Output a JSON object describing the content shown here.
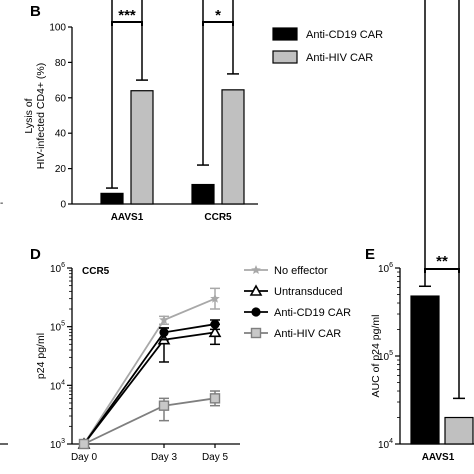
{
  "colors": {
    "cd19": "#000000",
    "hiv": "#c0c0c0",
    "no_effector": "#a8a8a8",
    "anti_hiv_line": "#7f7f7f"
  },
  "chart_data": [
    {
      "panel": "B",
      "type": "bar",
      "categories": [
        "AAVS1",
        "CCR5"
      ],
      "series": [
        {
          "name": "Anti-CD19 CAR",
          "values": [
            6,
            11
          ],
          "errors": [
            3,
            11
          ],
          "color": "#000000"
        },
        {
          "name": "Anti-HIV CAR",
          "values": [
            64,
            64.5
          ],
          "errors": [
            6,
            9
          ],
          "color": "#c0c0c0"
        }
      ],
      "ylabel_lines": [
        "Lysis of",
        "HIV-infected CD4+ (%)"
      ],
      "ylim": [
        0,
        100
      ],
      "yticks": [
        "0",
        "20",
        "40",
        "60",
        "80",
        "100"
      ],
      "significance": [
        "***",
        "*"
      ],
      "legend": "top-right"
    },
    {
      "panel": "D",
      "type": "line",
      "subtitle": "CCR5",
      "x": [
        "Day 0",
        "Day 3",
        "Day 5"
      ],
      "ylabel": "p24 pg/ml",
      "yscale": "log",
      "ylim": [
        1000,
        1000000
      ],
      "yticks": [
        "10^3",
        "10^4",
        "10^5",
        "10^6"
      ],
      "series": [
        {
          "name": "No effector",
          "marker": "star",
          "values": [
            1000,
            130000,
            300000
          ],
          "err_low": [
            1000,
            110000,
            200000
          ],
          "err_high": [
            1000,
            150000,
            450000
          ]
        },
        {
          "name": "Untransduced",
          "marker": "triangle",
          "values": [
            1000,
            60000,
            80000
          ],
          "err_low": [
            1000,
            25000,
            50000
          ],
          "err_high": [
            1000,
            95000,
            110000
          ]
        },
        {
          "name": "Anti-CD19 CAR",
          "marker": "circle",
          "values": [
            1000,
            80000,
            110000
          ],
          "err_low": [
            1000,
            60000,
            90000
          ],
          "err_high": [
            1000,
            95000,
            130000
          ]
        },
        {
          "name": "Anti-HIV CAR",
          "marker": "square",
          "values": [
            1000,
            4500,
            6000
          ],
          "err_low": [
            1000,
            2500,
            4500
          ],
          "err_high": [
            1000,
            6000,
            8000
          ]
        }
      ],
      "legend": "top-right"
    },
    {
      "panel": "E",
      "type": "bar",
      "categories": [
        "AAVS1"
      ],
      "ylabel": "AUC of p24 pg/ml",
      "yscale": "log",
      "ylim": [
        10000,
        1000000
      ],
      "yticks": [
        "10^4",
        "10^5",
        "10^6"
      ],
      "series": [
        {
          "name": "Anti-CD19 CAR",
          "values": [
            480000
          ],
          "err_high": [
            620000
          ],
          "color": "#000000"
        },
        {
          "name": "Anti-HIV CAR",
          "values": [
            20000
          ],
          "err_high": [
            33000
          ],
          "color": "#c0c0c0"
        }
      ],
      "significance": [
        "**"
      ]
    }
  ],
  "labels": {
    "B": "B",
    "D": "D",
    "E": "E",
    "dash": "-"
  }
}
